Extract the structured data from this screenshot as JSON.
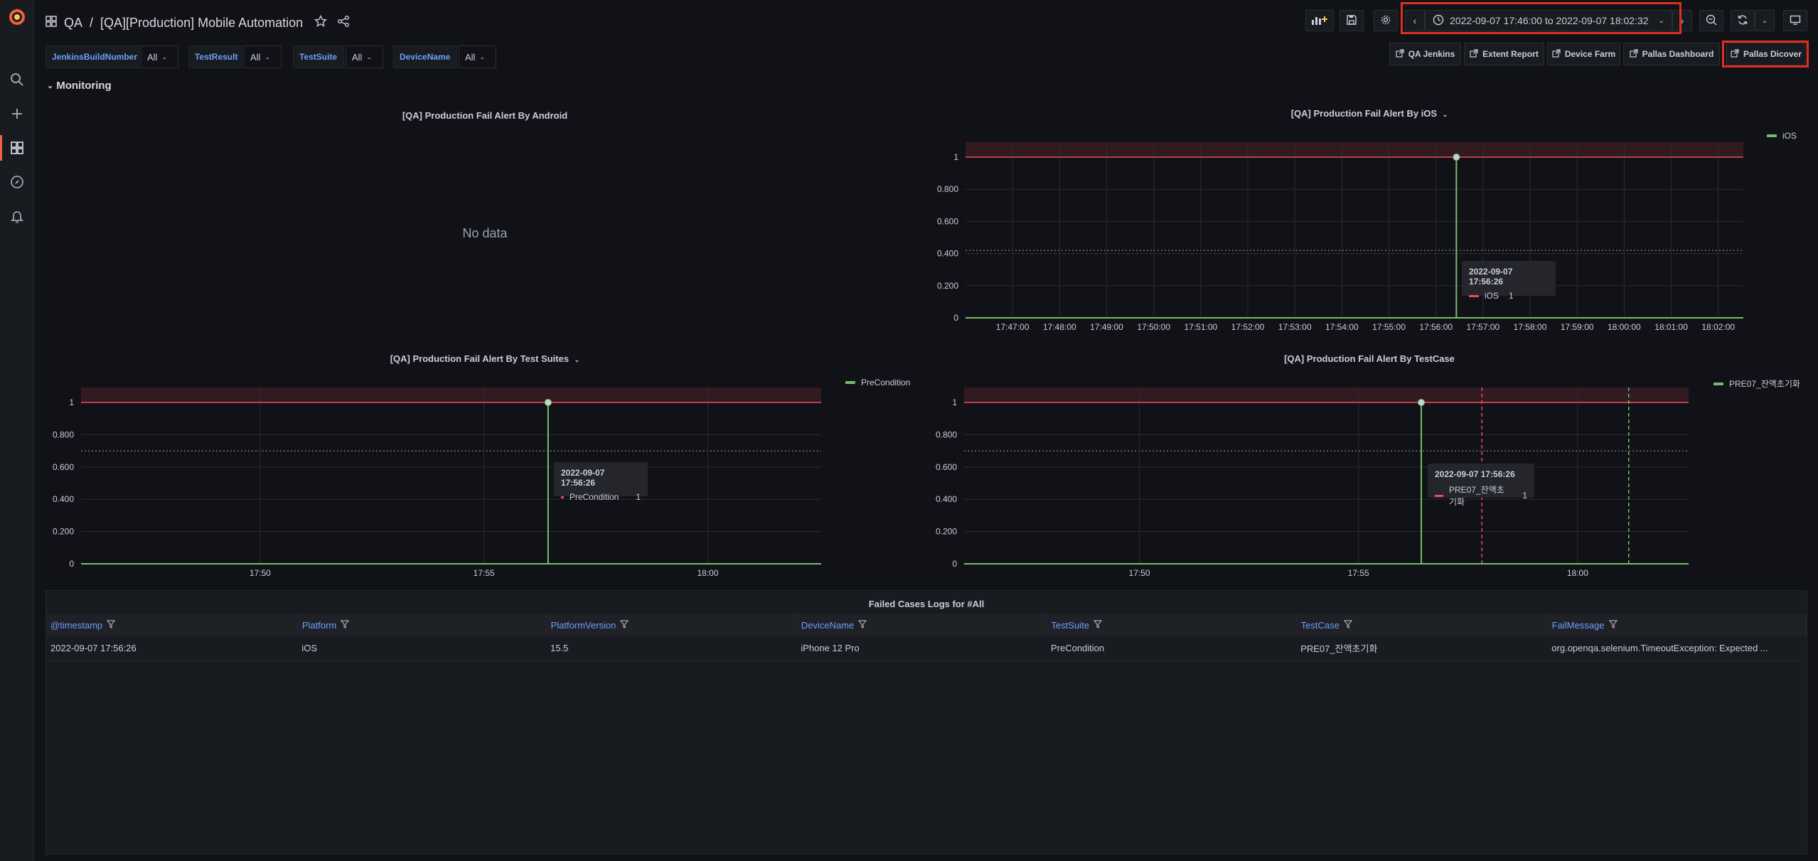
{
  "header": {
    "section": "QA",
    "separator": "/",
    "dashboard_title": "[QA][Production] Mobile Automation",
    "time_range": "2022-09-07 17:46:00 to 2022-09-07 18:02:32"
  },
  "variables": [
    {
      "label": "JenkinsBuildNumber",
      "value": "All"
    },
    {
      "label": "TestResult",
      "value": "All"
    },
    {
      "label": "TestSuite",
      "value": "All"
    },
    {
      "label": "DeviceName",
      "value": "All"
    }
  ],
  "links": [
    "QA Jenkins",
    "Extent Report",
    "Device Farm",
    "Pallas Dashboard",
    "Pallas Dicover"
  ],
  "row_title": "Monitoring",
  "panels": {
    "android": {
      "title": "[QA] Production Fail Alert By Android",
      "no_data": "No data"
    },
    "ios": {
      "title": "[QA] Production Fail Alert By iOS",
      "legend": "iOS",
      "tooltip": {
        "time": "2022-09-07 17:56:26",
        "series": "iOS",
        "value": "1"
      }
    },
    "suites": {
      "title": "[QA] Production Fail Alert By Test Suites",
      "legend": "PreCondition",
      "tooltip": {
        "time": "2022-09-07 17:56:26",
        "series": "PreCondition",
        "value": "1"
      }
    },
    "testcase": {
      "title": "[QA] Production Fail Alert By TestCase",
      "legend": "PRE07_잔액초기화",
      "tooltip": {
        "time": "2022-09-07 17:56:26",
        "series": "PRE07_잔액초기화",
        "value": "1"
      }
    }
  },
  "chart_data": [
    {
      "type": "line",
      "title": "[QA] Production Fail Alert By iOS",
      "x": [
        "17:47:00",
        "17:48:00",
        "17:49:00",
        "17:50:00",
        "17:51:00",
        "17:52:00",
        "17:53:00",
        "17:54:00",
        "17:55:00",
        "17:56:00",
        "17:57:00",
        "17:58:00",
        "17:59:00",
        "18:00:00",
        "18:01:00",
        "18:02:00"
      ],
      "yticks": [
        "0",
        "0.200",
        "0.400",
        "0.600",
        "0.800",
        "1"
      ],
      "ylim": [
        0,
        1
      ],
      "series": [
        {
          "name": "iOS",
          "points": [
            {
              "x": "17:56:26",
              "y": 1
            }
          ],
          "baseline": 0
        }
      ],
      "threshold": 1,
      "legend": "right"
    },
    {
      "type": "line",
      "title": "[QA] Production Fail Alert By Test Suites",
      "x": [
        "17:50",
        "17:55",
        "18:00"
      ],
      "yticks": [
        "0",
        "0.200",
        "0.400",
        "0.600",
        "0.800",
        "1"
      ],
      "ylim": [
        0,
        1
      ],
      "series": [
        {
          "name": "PreCondition",
          "points": [
            {
              "x": "17:56:26",
              "y": 1
            }
          ],
          "baseline": 0
        }
      ],
      "threshold": 1,
      "legend": "right"
    },
    {
      "type": "line",
      "title": "[QA] Production Fail Alert By TestCase",
      "x": [
        "17:50",
        "17:55",
        "18:00"
      ],
      "yticks": [
        "0",
        "0.200",
        "0.400",
        "0.600",
        "0.800",
        "1"
      ],
      "ylim": [
        0,
        1
      ],
      "series": [
        {
          "name": "PRE07_잔액초기화",
          "points": [
            {
              "x": "17:56:26",
              "y": 1
            }
          ],
          "baseline": 0
        }
      ],
      "threshold": 1,
      "legend": "right"
    }
  ],
  "table": {
    "title": "Failed Cases Logs for #All",
    "columns": [
      "@timestamp",
      "Platform",
      "PlatformVersion",
      "DeviceName",
      "TestSuite",
      "TestCase",
      "FailMessage"
    ],
    "rows": [
      [
        "2022-09-07 17:56:26",
        "iOS",
        "15.5",
        "iPhone 12 Pro",
        "PreCondition",
        "PRE07_잔액초기화",
        "org.openqa.selenium.TimeoutException: Expected ..."
      ]
    ]
  },
  "colors": {
    "series": "#73bf69",
    "threshold": "#f2495c",
    "link": "#6e9fff",
    "highlight": "#e02f1b",
    "grafana_logo": "#f55f3e"
  },
  "icons": [
    "grafana-logo",
    "search-icon",
    "plus-icon",
    "dashboards-icon",
    "explore-icon",
    "bell-icon",
    "grid-icon",
    "star-icon",
    "share-icon",
    "add-panel-icon",
    "save-icon",
    "gear-icon",
    "clock-icon",
    "zoom-out-icon",
    "refresh-icon",
    "tv-icon",
    "external-link-icon",
    "filter-icon"
  ]
}
